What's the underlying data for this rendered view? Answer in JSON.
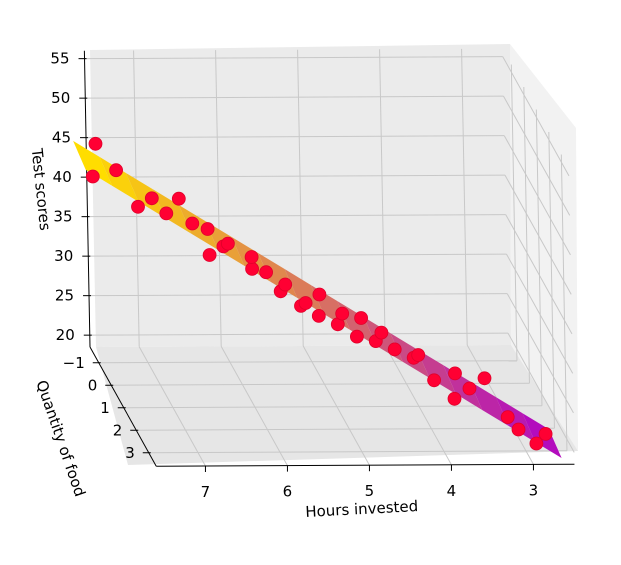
{
  "chart_data": {
    "type": "scatter",
    "subtype": "3d-scatter-with-regression-plane",
    "title": "",
    "xlabel": "Hours invested",
    "ylabel": "Quantity of food",
    "zlabel": "Test scores",
    "xlim": [
      2.5,
      7.6
    ],
    "ylim": [
      -1.7,
      3.6
    ],
    "zlim": [
      18.5,
      56
    ],
    "x_ticks": [
      "7",
      "6",
      "5",
      "4",
      "3"
    ],
    "y_ticks": [
      "−1",
      "0",
      "1",
      "2",
      "3"
    ],
    "z_ticks": [
      "55",
      "50",
      "45",
      "40",
      "35",
      "30",
      "25",
      "20"
    ],
    "grid": true,
    "colors": {
      "points": "#ff0033",
      "surface_high": "#ffdd00",
      "surface_low": "#a000c8",
      "pane": "#f2f2f2",
      "grid": "#c8c8c8"
    },
    "view": "camera-looking-along-descending-hours-axis",
    "series": [
      {
        "points": [
          {
            "x": 7.6,
            "y": -1.2,
            "z": 41.5
          },
          {
            "x": 7.5,
            "y": -1.6,
            "z": 44.5
          },
          {
            "x": 7.3,
            "y": -1.3,
            "z": 42.0
          },
          {
            "x": 7.1,
            "y": -0.9,
            "z": 38.5
          },
          {
            "x": 6.9,
            "y": -1.1,
            "z": 39.0
          },
          {
            "x": 6.8,
            "y": -0.6,
            "z": 38.5
          },
          {
            "x": 6.6,
            "y": -0.9,
            "z": 39.5
          },
          {
            "x": 6.5,
            "y": -0.5,
            "z": 37.5
          },
          {
            "x": 6.4,
            "y": 0.2,
            "z": 35.5
          },
          {
            "x": 6.3,
            "y": -0.6,
            "z": 36.5
          },
          {
            "x": 6.2,
            "y": 0.0,
            "z": 36.0
          },
          {
            "x": 6.1,
            "y": -0.3,
            "z": 35.5
          },
          {
            "x": 5.9,
            "y": 0.3,
            "z": 34.0
          },
          {
            "x": 5.8,
            "y": -0.4,
            "z": 33.5
          },
          {
            "x": 5.7,
            "y": 0.1,
            "z": 33.0
          },
          {
            "x": 5.6,
            "y": 0.6,
            "z": 32.0
          },
          {
            "x": 5.5,
            "y": 0.3,
            "z": 32.0
          },
          {
            "x": 5.4,
            "y": 0.9,
            "z": 31.0
          },
          {
            "x": 5.3,
            "y": 0.6,
            "z": 30.5
          },
          {
            "x": 5.2,
            "y": 1.0,
            "z": 30.0
          },
          {
            "x": 5.1,
            "y": 0.4,
            "z": 31.0
          },
          {
            "x": 5.0,
            "y": 1.2,
            "z": 29.5
          },
          {
            "x": 4.9,
            "y": 0.9,
            "z": 30.0
          },
          {
            "x": 4.8,
            "y": 1.4,
            "z": 28.5
          },
          {
            "x": 4.7,
            "y": 1.1,
            "z": 30.0
          },
          {
            "x": 4.6,
            "y": 1.6,
            "z": 28.5
          },
          {
            "x": 4.5,
            "y": 1.4,
            "z": 29.0
          },
          {
            "x": 4.4,
            "y": 1.8,
            "z": 28.0
          },
          {
            "x": 4.2,
            "y": 2.0,
            "z": 27.5
          },
          {
            "x": 4.1,
            "y": 1.7,
            "z": 27.0
          },
          {
            "x": 4.0,
            "y": 2.3,
            "z": 25.5
          },
          {
            "x": 3.8,
            "y": 2.6,
            "z": 24.0
          },
          {
            "x": 3.7,
            "y": 2.0,
            "z": 25.5
          },
          {
            "x": 3.6,
            "y": 2.5,
            "z": 25.0
          },
          {
            "x": 3.4,
            "y": 2.4,
            "z": 26.0
          },
          {
            "x": 3.2,
            "y": 2.9,
            "z": 22.5
          },
          {
            "x": 3.1,
            "y": 3.1,
            "z": 21.5
          },
          {
            "x": 2.9,
            "y": 3.2,
            "z": 20.0
          },
          {
            "x": 2.8,
            "y": 3.3,
            "z": 21.5
          }
        ]
      }
    ]
  }
}
